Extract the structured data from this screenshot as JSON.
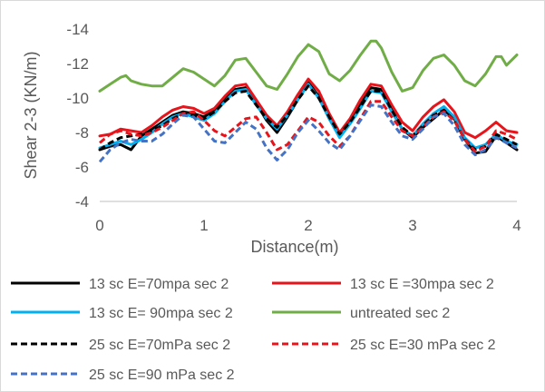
{
  "chart_data": {
    "type": "line",
    "xlabel": "Distance(m)",
    "ylabel": "Shear 2-3 (KN/m)",
    "xlim": [
      0,
      4
    ],
    "ylim": [
      -4,
      -14
    ],
    "y_axis_reversed": true,
    "grid": false,
    "legend_position": "bottom",
    "x_ticks": [
      "0",
      "1",
      "2",
      "3",
      "4"
    ],
    "y_ticks": [
      "-4",
      "-6",
      "-8",
      "-10",
      "-12",
      "-14"
    ],
    "series": [
      {
        "name": "13 sc E=70mpa sec 2",
        "color": "#000000",
        "dash": "solid",
        "x": [
          0,
          0.1,
          0.2,
          0.3,
          0.4,
          0.5,
          0.6,
          0.7,
          0.8,
          0.9,
          1.0,
          1.1,
          1.2,
          1.3,
          1.4,
          1.5,
          1.6,
          1.7,
          1.8,
          1.9,
          2.0,
          2.1,
          2.2,
          2.3,
          2.4,
          2.5,
          2.6,
          2.7,
          2.8,
          2.9,
          3.0,
          3.1,
          3.2,
          3.3,
          3.4,
          3.5,
          3.6,
          3.7,
          3.8,
          3.9,
          4.0
        ],
        "values": [
          -7.0,
          -7.2,
          -7.3,
          -7.0,
          -7.8,
          -8.2,
          -8.6,
          -9.0,
          -9.2,
          -9.1,
          -8.9,
          -9.3,
          -10.0,
          -10.5,
          -10.6,
          -9.7,
          -8.7,
          -8.0,
          -8.9,
          -9.9,
          -10.9,
          -10.1,
          -8.8,
          -7.8,
          -8.6,
          -9.6,
          -10.6,
          -10.5,
          -9.3,
          -8.2,
          -7.7,
          -8.3,
          -8.8,
          -9.3,
          -8.8,
          -7.6,
          -6.8,
          -6.9,
          -7.8,
          -7.4,
          -7.0
        ]
      },
      {
        "name": "13 sc E =30mpa sec 2",
        "color": "#e8141b",
        "dash": "solid",
        "x": [
          0,
          0.1,
          0.2,
          0.3,
          0.4,
          0.5,
          0.6,
          0.7,
          0.8,
          0.9,
          1.0,
          1.1,
          1.2,
          1.3,
          1.4,
          1.5,
          1.6,
          1.7,
          1.8,
          1.9,
          2.0,
          2.1,
          2.2,
          2.3,
          2.4,
          2.5,
          2.6,
          2.7,
          2.8,
          2.9,
          3.0,
          3.1,
          3.2,
          3.3,
          3.4,
          3.5,
          3.6,
          3.7,
          3.8,
          3.9,
          4.0
        ],
        "values": [
          -7.8,
          -7.9,
          -8.2,
          -8.1,
          -8.0,
          -8.4,
          -8.9,
          -9.3,
          -9.5,
          -9.4,
          -9.1,
          -9.4,
          -10.1,
          -10.7,
          -10.8,
          -9.9,
          -9.0,
          -8.4,
          -9.2,
          -10.2,
          -11.1,
          -10.4,
          -9.1,
          -8.0,
          -8.8,
          -9.9,
          -10.8,
          -10.7,
          -9.6,
          -8.6,
          -8.1,
          -8.9,
          -9.5,
          -9.9,
          -9.2,
          -8.0,
          -7.7,
          -8.1,
          -8.6,
          -8.1,
          -8.0
        ]
      },
      {
        "name": "13 sc E= 90mpa sec 2",
        "color": "#00b0f0",
        "dash": "solid",
        "x": [
          0,
          0.1,
          0.2,
          0.3,
          0.4,
          0.5,
          0.6,
          0.7,
          0.8,
          0.9,
          1.0,
          1.1,
          1.2,
          1.3,
          1.4,
          1.5,
          1.6,
          1.7,
          1.8,
          1.9,
          2.0,
          2.1,
          2.2,
          2.3,
          2.4,
          2.5,
          2.6,
          2.7,
          2.8,
          2.9,
          3.0,
          3.1,
          3.2,
          3.3,
          3.4,
          3.5,
          3.6,
          3.7,
          3.8,
          3.9,
          4.0
        ],
        "values": [
          -7.1,
          -7.3,
          -7.5,
          -7.3,
          -7.6,
          -8.0,
          -8.5,
          -8.9,
          -9.1,
          -8.9,
          -8.7,
          -9.1,
          -9.8,
          -10.4,
          -10.5,
          -9.6,
          -8.8,
          -8.2,
          -9.0,
          -9.9,
          -10.8,
          -10.0,
          -8.8,
          -7.7,
          -8.5,
          -9.4,
          -10.4,
          -10.3,
          -9.2,
          -8.2,
          -7.8,
          -8.5,
          -9.1,
          -9.5,
          -8.9,
          -7.7,
          -7.1,
          -7.3,
          -7.9,
          -7.5,
          -7.3
        ]
      },
      {
        "name": "untreated sec 2",
        "color": "#70ad47",
        "dash": "solid",
        "x": [
          0,
          0.1,
          0.2,
          0.25,
          0.3,
          0.4,
          0.5,
          0.6,
          0.7,
          0.8,
          0.9,
          1.0,
          1.1,
          1.2,
          1.3,
          1.4,
          1.5,
          1.6,
          1.7,
          1.8,
          1.9,
          2.0,
          2.1,
          2.2,
          2.3,
          2.4,
          2.5,
          2.6,
          2.65,
          2.7,
          2.8,
          2.9,
          3.0,
          3.1,
          3.2,
          3.3,
          3.4,
          3.5,
          3.6,
          3.7,
          3.8,
          3.85,
          3.9,
          4.0
        ],
        "values": [
          -10.4,
          -10.8,
          -11.2,
          -11.3,
          -11.0,
          -10.8,
          -10.7,
          -10.7,
          -11.2,
          -11.7,
          -11.5,
          -11.1,
          -10.7,
          -11.3,
          -12.2,
          -12.3,
          -11.5,
          -10.7,
          -10.5,
          -11.4,
          -12.4,
          -13.1,
          -12.7,
          -11.4,
          -11.0,
          -11.6,
          -12.5,
          -13.3,
          -13.3,
          -12.9,
          -11.5,
          -10.4,
          -10.6,
          -11.6,
          -12.3,
          -12.5,
          -11.9,
          -11.0,
          -10.7,
          -11.4,
          -12.4,
          -12.4,
          -11.9,
          -12.5
        ]
      },
      {
        "name": "25 sc E=70mPa sec 2",
        "color": "#000000",
        "dash": "dashed",
        "x": [
          0,
          0.1,
          0.2,
          0.3,
          0.4,
          0.5,
          0.6,
          0.7,
          0.8,
          0.9,
          1.0,
          1.1,
          1.2,
          1.3,
          1.4,
          1.5,
          1.6,
          1.7,
          1.8,
          1.9,
          2.0,
          2.1,
          2.2,
          2.3,
          2.4,
          2.5,
          2.6,
          2.7,
          2.8,
          2.9,
          3.0,
          3.1,
          3.2,
          3.3,
          3.4,
          3.5,
          3.6,
          3.7,
          3.8,
          3.9,
          4.0
        ],
        "values": [
          -7.0,
          -7.4,
          -7.7,
          -7.8,
          -7.9,
          -8.1,
          -8.4,
          -8.8,
          -9.1,
          -9.0,
          -8.8,
          -9.2,
          -9.8,
          -10.3,
          -10.4,
          -9.6,
          -8.8,
          -8.3,
          -9.0,
          -9.9,
          -10.7,
          -10.0,
          -8.9,
          -7.9,
          -8.6,
          -9.5,
          -10.4,
          -10.4,
          -9.3,
          -8.3,
          -7.8,
          -8.4,
          -9.0,
          -9.3,
          -8.7,
          -7.6,
          -7.0,
          -7.2,
          -7.9,
          -7.6,
          -7.3
        ]
      },
      {
        "name": "25 sc E=30 mPa sec 2",
        "color": "#e8141b",
        "dash": "dashed",
        "x": [
          0,
          0.1,
          0.2,
          0.3,
          0.4,
          0.5,
          0.6,
          0.7,
          0.8,
          0.9,
          1.0,
          1.1,
          1.2,
          1.3,
          1.4,
          1.5,
          1.6,
          1.7,
          1.8,
          1.9,
          2.0,
          2.1,
          2.2,
          2.3,
          2.4,
          2.5,
          2.6,
          2.7,
          2.8,
          2.9,
          3.0,
          3.1,
          3.2,
          3.3,
          3.4,
          3.5,
          3.6,
          3.7,
          3.8,
          3.9,
          4.0
        ],
        "values": [
          -7.4,
          -7.9,
          -8.1,
          -7.9,
          -7.8,
          -8.0,
          -8.3,
          -8.7,
          -9.1,
          -9.2,
          -8.7,
          -8.1,
          -7.8,
          -8.3,
          -8.8,
          -8.9,
          -8.0,
          -7.0,
          -7.3,
          -8.1,
          -8.9,
          -8.6,
          -7.8,
          -7.2,
          -7.8,
          -8.8,
          -9.8,
          -9.8,
          -8.9,
          -8.1,
          -7.8,
          -8.3,
          -8.9,
          -9.2,
          -8.7,
          -7.6,
          -6.9,
          -7.2,
          -8.1,
          -7.9,
          -7.6
        ]
      },
      {
        "name": "25 sc E=90 mPa sec 2",
        "color": "#4472c4",
        "dash": "dashed",
        "x": [
          0,
          0.1,
          0.2,
          0.3,
          0.4,
          0.5,
          0.6,
          0.7,
          0.8,
          0.9,
          1.0,
          1.1,
          1.2,
          1.3,
          1.4,
          1.5,
          1.6,
          1.7,
          1.8,
          1.9,
          2.0,
          2.1,
          2.2,
          2.3,
          2.4,
          2.5,
          2.6,
          2.7,
          2.8,
          2.9,
          3.0,
          3.1,
          3.2,
          3.3,
          3.4,
          3.5,
          3.6,
          3.7,
          3.8,
          3.9,
          4.0
        ],
        "values": [
          -6.3,
          -7.0,
          -7.4,
          -7.6,
          -7.5,
          -7.5,
          -7.9,
          -8.5,
          -9.0,
          -8.9,
          -8.2,
          -7.5,
          -7.4,
          -8.0,
          -8.6,
          -8.2,
          -7.1,
          -6.4,
          -7.0,
          -8.0,
          -8.7,
          -8.1,
          -7.4,
          -7.0,
          -7.8,
          -8.7,
          -9.6,
          -9.5,
          -8.6,
          -7.8,
          -7.6,
          -8.2,
          -8.9,
          -9.1,
          -8.4,
          -7.3,
          -6.7,
          -7.0,
          -7.7,
          -7.4,
          -7.1
        ]
      }
    ]
  }
}
